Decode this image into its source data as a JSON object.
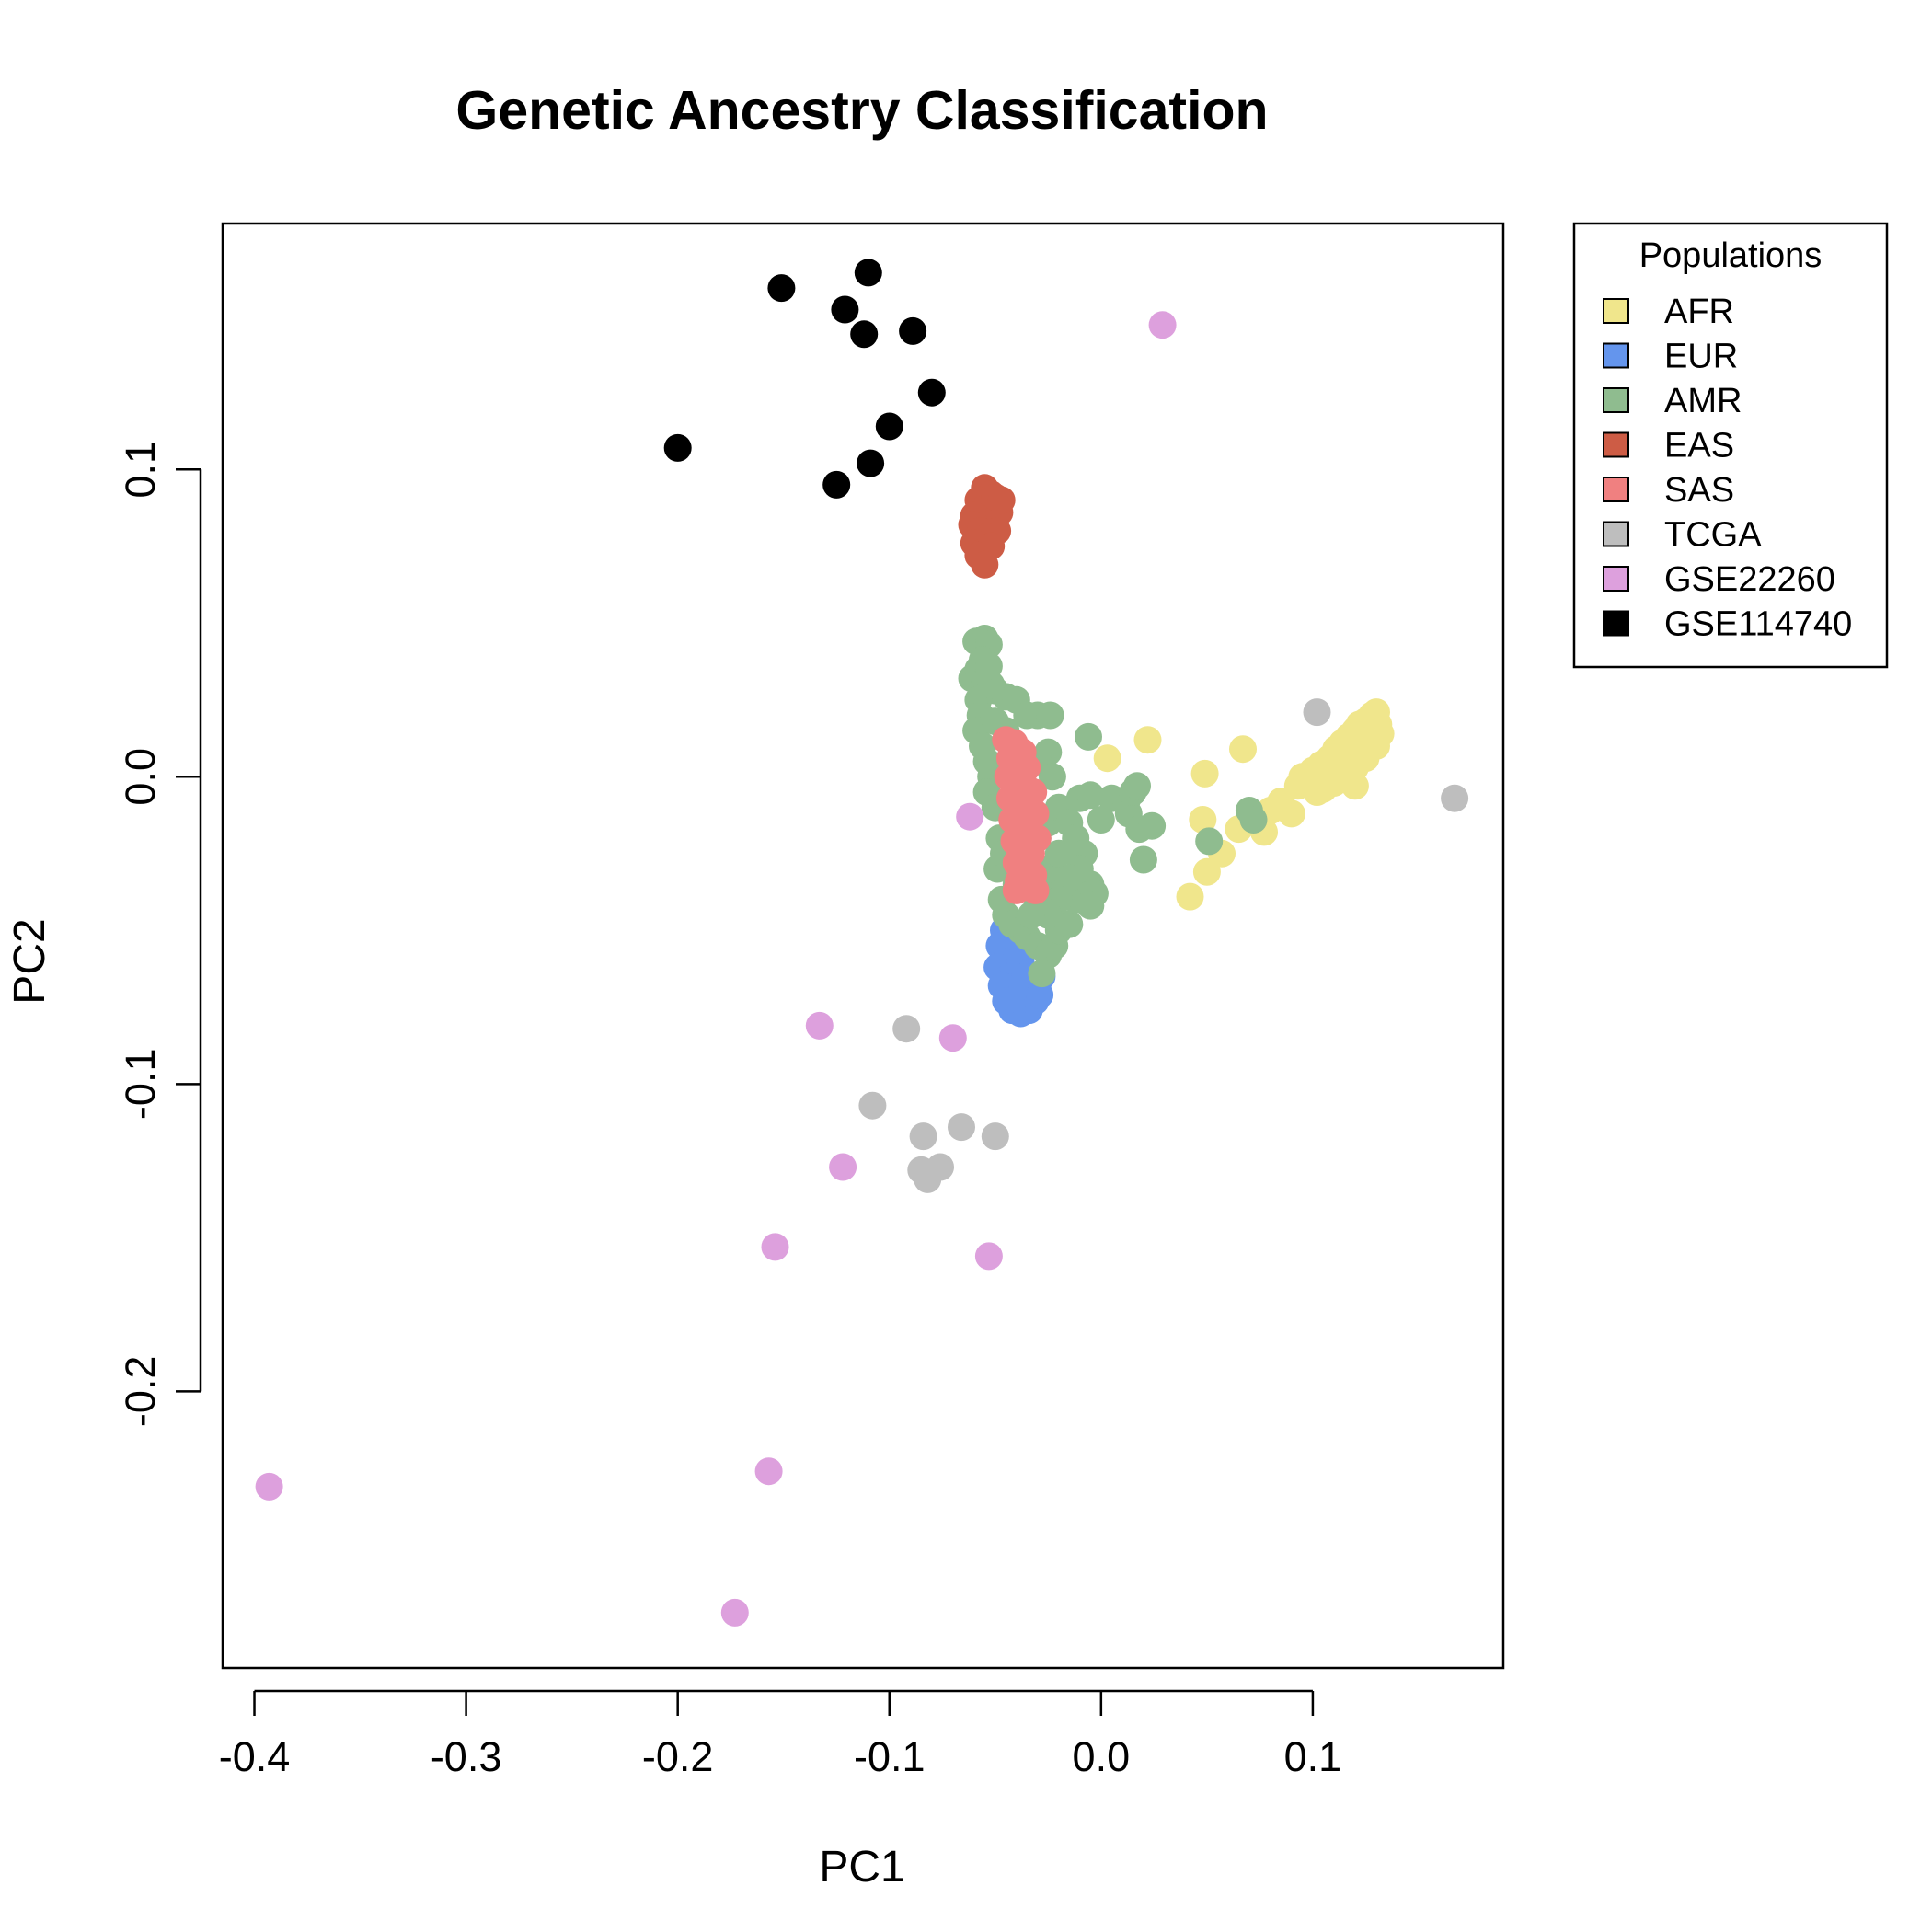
{
  "chart_data": {
    "type": "scatter",
    "title": "Genetic Ancestry Classification",
    "xlabel": "PC1",
    "ylabel": "PC2",
    "xlim": [
      -0.415,
      0.19
    ],
    "ylim": [
      -0.29,
      0.18
    ],
    "xticks": [
      -0.4,
      -0.3,
      -0.2,
      -0.1,
      0.0,
      0.1
    ],
    "xtick_labels": [
      "-0.4",
      "-0.3",
      "-0.2",
      "-0.1",
      "0.0",
      "0.1"
    ],
    "yticks": [
      -0.2,
      -0.1,
      0.0,
      0.1
    ],
    "ytick_labels": [
      "-0.2",
      "-0.1",
      "0.0",
      "0.1"
    ],
    "grid": false,
    "legend": {
      "title": "Populations",
      "placement": "outside-top-right"
    },
    "series": [
      {
        "name": "AFR",
        "color": "#f0e68c",
        "points": [
          [
            0.003,
            0.006
          ],
          [
            0.022,
            0.012
          ],
          [
            0.049,
            0.001
          ],
          [
            0.067,
            0.009
          ],
          [
            0.048,
            -0.014
          ],
          [
            0.05,
            -0.031
          ],
          [
            0.057,
            -0.025
          ],
          [
            0.042,
            -0.039
          ],
          [
            0.065,
            -0.017
          ],
          [
            0.077,
            -0.018
          ],
          [
            0.08,
            -0.011
          ],
          [
            0.085,
            -0.008
          ],
          [
            0.09,
            -0.012
          ],
          [
            0.093,
            -0.003
          ],
          [
            0.095,
            0.0
          ],
          [
            0.098,
            -0.002
          ],
          [
            0.1,
            0.002
          ],
          [
            0.102,
            -0.005
          ],
          [
            0.104,
            0.004
          ],
          [
            0.106,
            0.001
          ],
          [
            0.108,
            0.006
          ],
          [
            0.11,
            0.003
          ],
          [
            0.111,
            0.009
          ],
          [
            0.113,
            0.005
          ],
          [
            0.114,
            0.011
          ],
          [
            0.116,
            0.007
          ],
          [
            0.117,
            0.013
          ],
          [
            0.118,
            0.009
          ],
          [
            0.12,
            0.015
          ],
          [
            0.121,
            0.011
          ],
          [
            0.122,
            0.017
          ],
          [
            0.124,
            0.013
          ],
          [
            0.125,
            0.018
          ],
          [
            0.126,
            0.014
          ],
          [
            0.128,
            0.02
          ],
          [
            0.129,
            0.016
          ],
          [
            0.13,
            0.021
          ],
          [
            0.131,
            0.017
          ],
          [
            0.132,
            0.014
          ],
          [
            0.13,
            0.01
          ],
          [
            0.125,
            0.006
          ],
          [
            0.12,
            0.003
          ],
          [
            0.115,
            0.0
          ],
          [
            0.11,
            -0.002
          ],
          [
            0.105,
            -0.004
          ],
          [
            0.12,
            -0.003
          ],
          [
            0.1,
            0.0
          ]
        ]
      },
      {
        "name": "EUR",
        "color": "#6495ed",
        "points": [
          [
            -0.046,
            -0.05
          ],
          [
            -0.048,
            -0.055
          ],
          [
            -0.044,
            -0.058
          ],
          [
            -0.049,
            -0.062
          ],
          [
            -0.045,
            -0.066
          ],
          [
            -0.041,
            -0.063
          ],
          [
            -0.038,
            -0.06
          ],
          [
            -0.036,
            -0.065
          ],
          [
            -0.033,
            -0.07
          ],
          [
            -0.03,
            -0.068
          ],
          [
            -0.028,
            -0.065
          ],
          [
            -0.035,
            -0.072
          ],
          [
            -0.04,
            -0.074
          ],
          [
            -0.043,
            -0.07
          ],
          [
            -0.047,
            -0.068
          ],
          [
            -0.038,
            -0.077
          ],
          [
            -0.034,
            -0.076
          ],
          [
            -0.031,
            -0.073
          ],
          [
            -0.042,
            -0.076
          ],
          [
            -0.045,
            -0.073
          ],
          [
            -0.037,
            -0.068
          ],
          [
            -0.039,
            -0.055
          ],
          [
            -0.042,
            -0.052
          ],
          [
            -0.029,
            -0.071
          ]
        ]
      },
      {
        "name": "AMR",
        "color": "#8fbc8f",
        "points": [
          [
            -0.059,
            0.044
          ],
          [
            -0.055,
            0.045
          ],
          [
            -0.053,
            0.043
          ],
          [
            -0.061,
            0.032
          ],
          [
            -0.058,
            0.035
          ],
          [
            -0.055,
            0.03
          ],
          [
            -0.05,
            0.028
          ],
          [
            -0.045,
            0.026
          ],
          [
            -0.04,
            0.025
          ],
          [
            -0.035,
            0.02
          ],
          [
            -0.03,
            0.02
          ],
          [
            -0.024,
            0.02
          ],
          [
            -0.058,
            0.025
          ],
          [
            -0.057,
            0.02
          ],
          [
            -0.059,
            0.015
          ],
          [
            -0.056,
            0.01
          ],
          [
            -0.054,
            0.005
          ],
          [
            -0.052,
            0.0
          ],
          [
            -0.054,
            -0.005
          ],
          [
            -0.05,
            -0.01
          ],
          [
            -0.048,
            -0.02
          ],
          [
            -0.049,
            -0.03
          ],
          [
            -0.047,
            -0.04
          ],
          [
            -0.045,
            -0.045
          ],
          [
            -0.042,
            -0.048
          ],
          [
            -0.038,
            -0.05
          ],
          [
            -0.035,
            -0.052
          ],
          [
            -0.03,
            -0.055
          ],
          [
            -0.025,
            -0.058
          ],
          [
            -0.022,
            -0.055
          ],
          [
            -0.02,
            -0.05
          ],
          [
            -0.015,
            -0.048
          ],
          [
            -0.012,
            -0.04
          ],
          [
            -0.02,
            -0.035
          ],
          [
            -0.025,
            -0.03
          ],
          [
            -0.02,
            -0.025
          ],
          [
            -0.025,
            -0.015
          ],
          [
            -0.02,
            -0.01
          ],
          [
            -0.015,
            -0.015
          ],
          [
            -0.012,
            -0.02
          ],
          [
            -0.008,
            -0.025
          ],
          [
            -0.005,
            -0.035
          ],
          [
            -0.003,
            -0.038
          ],
          [
            -0.005,
            -0.042
          ],
          [
            -0.01,
            -0.03
          ],
          [
            -0.015,
            -0.033
          ],
          [
            -0.02,
            -0.04
          ],
          [
            -0.025,
            -0.045
          ],
          [
            -0.03,
            -0.04
          ],
          [
            -0.03,
            -0.02
          ],
          [
            -0.035,
            -0.01
          ],
          [
            -0.025,
            0.008
          ],
          [
            -0.03,
            0.005
          ],
          [
            -0.023,
            0.0
          ],
          [
            -0.01,
            -0.007
          ],
          [
            -0.006,
            0.013
          ],
          [
            -0.005,
            -0.006
          ],
          [
            0.0,
            -0.014
          ],
          [
            0.005,
            -0.007
          ],
          [
            0.012,
            -0.008
          ],
          [
            0.013,
            -0.012
          ],
          [
            0.015,
            -0.005
          ],
          [
            0.017,
            -0.003
          ],
          [
            0.018,
            -0.017
          ],
          [
            0.024,
            -0.016
          ],
          [
            0.02,
            -0.027
          ],
          [
            0.051,
            -0.021
          ],
          [
            0.07,
            -0.011
          ],
          [
            0.072,
            -0.014
          ],
          [
            -0.043,
            0.0
          ],
          [
            -0.046,
            -0.025
          ],
          [
            -0.04,
            -0.035
          ],
          [
            -0.037,
            -0.03
          ],
          [
            -0.033,
            -0.045
          ],
          [
            -0.05,
            0.018
          ],
          [
            -0.045,
            0.015
          ],
          [
            -0.052,
            0.03
          ],
          [
            -0.056,
            0.038
          ],
          [
            -0.053,
            0.036
          ],
          [
            -0.028,
            -0.064
          ]
        ]
      },
      {
        "name": "EAS",
        "color": "#cd5c45",
        "points": [
          [
            -0.055,
            0.094
          ],
          [
            -0.052,
            0.092
          ],
          [
            -0.058,
            0.09
          ],
          [
            -0.05,
            0.089
          ],
          [
            -0.056,
            0.087
          ],
          [
            -0.06,
            0.085
          ],
          [
            -0.053,
            0.084
          ],
          [
            -0.048,
            0.086
          ],
          [
            -0.061,
            0.082
          ],
          [
            -0.057,
            0.08
          ],
          [
            -0.049,
            0.08
          ],
          [
            -0.054,
            0.078
          ],
          [
            -0.06,
            0.076
          ],
          [
            -0.056,
            0.073
          ],
          [
            -0.052,
            0.075
          ],
          [
            -0.058,
            0.072
          ],
          [
            -0.055,
            0.069
          ],
          [
            -0.05,
            0.091
          ],
          [
            -0.047,
            0.09
          ]
        ]
      },
      {
        "name": "SAS",
        "color": "#f08080",
        "points": [
          [
            -0.045,
            0.012
          ],
          [
            -0.041,
            0.011
          ],
          [
            -0.037,
            0.008
          ],
          [
            -0.043,
            0.006
          ],
          [
            -0.039,
            0.004
          ],
          [
            -0.035,
            0.003
          ],
          [
            -0.044,
            0.0
          ],
          [
            -0.04,
            -0.002
          ],
          [
            -0.036,
            -0.003
          ],
          [
            -0.032,
            -0.005
          ],
          [
            -0.043,
            -0.007
          ],
          [
            -0.039,
            -0.009
          ],
          [
            -0.035,
            -0.011
          ],
          [
            -0.031,
            -0.012
          ],
          [
            -0.042,
            -0.014
          ],
          [
            -0.038,
            -0.016
          ],
          [
            -0.034,
            -0.018
          ],
          [
            -0.03,
            -0.02
          ],
          [
            -0.041,
            -0.021
          ],
          [
            -0.037,
            -0.023
          ],
          [
            -0.033,
            -0.025
          ],
          [
            -0.04,
            -0.028
          ],
          [
            -0.036,
            -0.03
          ],
          [
            -0.032,
            -0.032
          ],
          [
            -0.039,
            -0.034
          ],
          [
            -0.035,
            -0.036
          ],
          [
            -0.031,
            -0.037
          ],
          [
            -0.04,
            -0.037
          ]
        ]
      },
      {
        "name": "TCGA",
        "color": "#bebebe",
        "points": [
          [
            0.102,
            0.021
          ],
          [
            0.167,
            -0.007
          ],
          [
            -0.092,
            -0.082
          ],
          [
            -0.108,
            -0.107
          ],
          [
            -0.084,
            -0.117
          ],
          [
            -0.066,
            -0.114
          ],
          [
            -0.05,
            -0.117
          ],
          [
            -0.076,
            -0.127
          ],
          [
            -0.085,
            -0.128
          ],
          [
            -0.082,
            -0.131
          ]
        ]
      },
      {
        "name": "GSE22260",
        "color": "#dda0dd",
        "points": [
          [
            0.029,
            0.147
          ],
          [
            -0.062,
            -0.013
          ],
          [
            -0.133,
            -0.081
          ],
          [
            -0.07,
            -0.085
          ],
          [
            -0.122,
            -0.127
          ],
          [
            -0.154,
            -0.153
          ],
          [
            -0.053,
            -0.156
          ],
          [
            -0.393,
            -0.231
          ],
          [
            -0.157,
            -0.226
          ],
          [
            -0.173,
            -0.272
          ]
        ]
      },
      {
        "name": "GSE114740",
        "color": "#000000",
        "points": [
          [
            -0.151,
            0.159
          ],
          [
            -0.11,
            0.164
          ],
          [
            -0.121,
            0.152
          ],
          [
            -0.112,
            0.144
          ],
          [
            -0.089,
            0.145
          ],
          [
            -0.08,
            0.125
          ],
          [
            -0.1,
            0.114
          ],
          [
            -0.2,
            0.107
          ],
          [
            -0.109,
            0.102
          ],
          [
            -0.125,
            0.095
          ]
        ]
      }
    ]
  }
}
